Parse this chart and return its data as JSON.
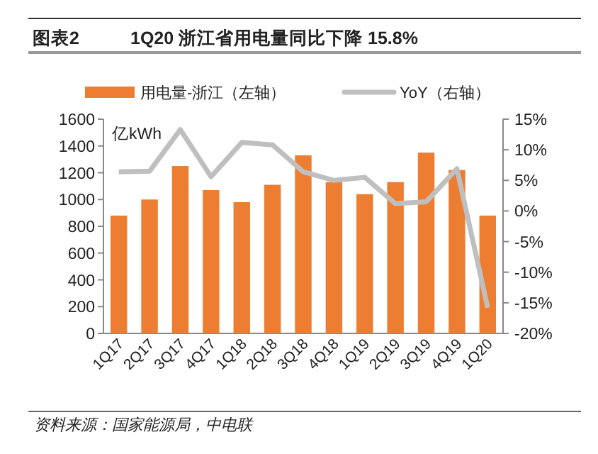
{
  "chart_data": {
    "type": "bar",
    "title": "图表2",
    "subtitle": "1Q20 浙江省用电量同比下降 15.8%",
    "ylabel": "亿kWh",
    "categories": [
      "1Q17",
      "2Q17",
      "3Q17",
      "4Q17",
      "1Q18",
      "2Q18",
      "3Q18",
      "4Q18",
      "1Q19",
      "2Q19",
      "3Q19",
      "4Q19",
      "1Q20"
    ],
    "series": [
      {
        "name": "用电量-浙江（左轴）",
        "color": "#ed7d31",
        "values": [
          880,
          1000,
          1250,
          1070,
          980,
          1110,
          1330,
          1130,
          1040,
          1130,
          1350,
          1220,
          880
        ]
      },
      {
        "name": "YoY（右轴）",
        "type": "line",
        "axis": "y2",
        "color": "#bfbfbf",
        "values": [
          6.4,
          6.5,
          13.3,
          5.6,
          11.2,
          10.8,
          6.4,
          5.0,
          5.5,
          1.2,
          1.5,
          6.9,
          -15.8
        ]
      }
    ],
    "ylim": [
      0,
      1600
    ],
    "yticks": [
      0,
      200,
      400,
      600,
      800,
      1000,
      1200,
      1400,
      1600
    ],
    "y2lim": [
      -20,
      15
    ],
    "y2ticks": [
      {
        "value": -20,
        "label": "-20%"
      },
      {
        "value": -15,
        "label": "-15%"
      },
      {
        "value": -10,
        "label": "-10%"
      },
      {
        "value": -5,
        "label": "-5%"
      },
      {
        "value": 0,
        "label": "0%"
      },
      {
        "value": 5,
        "label": "5%"
      },
      {
        "value": 10,
        "label": "10%"
      },
      {
        "value": 15,
        "label": "15%"
      }
    ],
    "legend": "top",
    "grid": false,
    "marker": "none",
    "annotations": [
      "资料来源：国家能源局，中电联"
    ]
  }
}
